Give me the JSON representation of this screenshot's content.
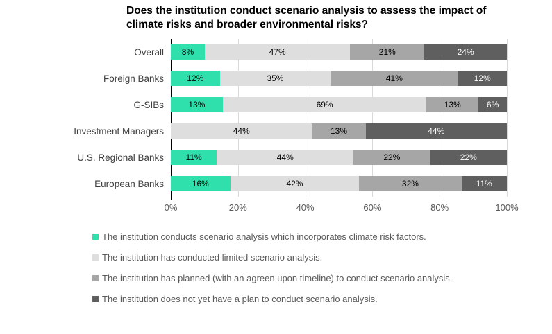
{
  "title": "Does the institution conduct scenario analysis to assess the impact of climate risks and broader environmental risks?",
  "chart_data": {
    "type": "bar",
    "orientation": "horizontal-stacked",
    "title": "Does the institution conduct scenario analysis to assess the impact of climate risks and broader environmental risks?",
    "categories": [
      "Overall",
      "Foreign Banks",
      "G-SIBs",
      "Investment Managers",
      "U.S. Regional Banks",
      "European Banks"
    ],
    "series": [
      {
        "name": "The institution conducts scenario analysis which incorporates climate risk factors.",
        "color": "#2fe0ad",
        "label_color": "#000000",
        "values": [
          8,
          12,
          13,
          0,
          11,
          16
        ]
      },
      {
        "name": "The institution has conducted limited scenario analysis.",
        "color": "#dedede",
        "label_color": "#000000",
        "values": [
          47,
          35,
          69,
          44,
          44,
          42
        ]
      },
      {
        "name": "The institution has planned (with an agreen upon timeline) to conduct scenario analysis.",
        "color": "#a6a6a6",
        "label_color": "#000000",
        "values": [
          21,
          41,
          13,
          13,
          22,
          32
        ]
      },
      {
        "name": "The institution does not yet have a plan to conduct scenario analysis.",
        "color": "#5f5f5f",
        "label_color": "#ffffff",
        "values": [
          24,
          12,
          6,
          44,
          22,
          11
        ]
      }
    ],
    "x_ticks": [
      "0%",
      "20%",
      "40%",
      "60%",
      "80%",
      "100%"
    ],
    "xlim": [
      0,
      100
    ],
    "value_suffix": "%",
    "grid": true,
    "axis_line_color": "#000000",
    "gridline_color": "#d9d9d9",
    "legend_position": "bottom"
  }
}
